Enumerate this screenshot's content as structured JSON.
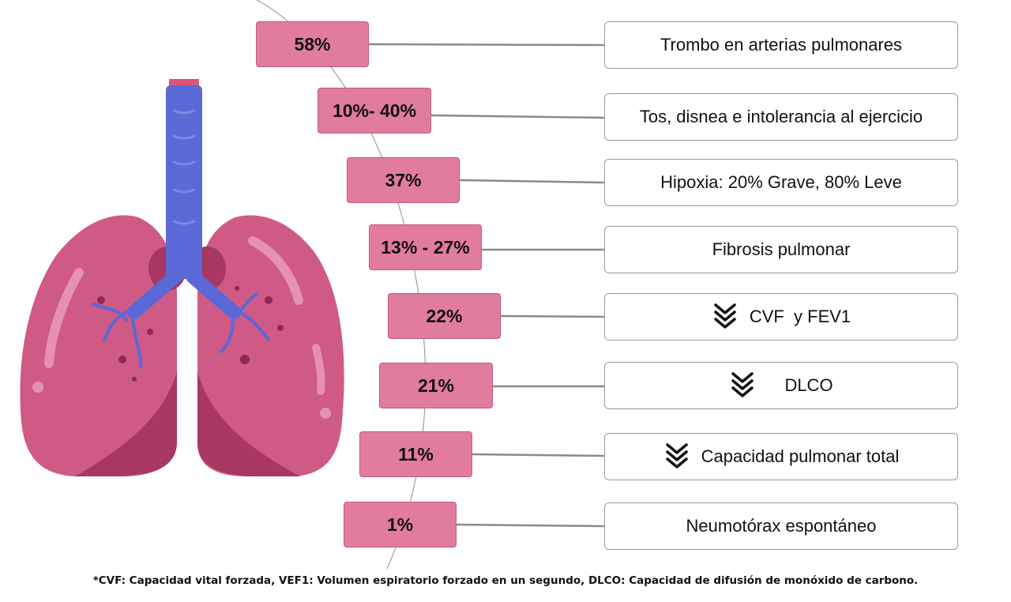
{
  "items": [
    {
      "pct": "58%",
      "label": "Trombo en arterias pulmonares",
      "icon": "none"
    },
    {
      "pct": "10%- 40%",
      "label": "Tos, disnea e intolerancia al ejercicio",
      "icon": "none"
    },
    {
      "pct": "37%",
      "label": "Hipoxia: 20% Grave, 80% Leve",
      "icon": "none"
    },
    {
      "pct": "13% - 27%",
      "label": "Fibrosis pulmonar",
      "icon": "none"
    },
    {
      "pct": "22%",
      "label": "CVF  y FEV1",
      "icon": "double-chevron-down-icon"
    },
    {
      "pct": "21%",
      "label": "DLCO",
      "icon": "double-chevron-down-icon"
    },
    {
      "pct": "11%",
      "label": "Capacidad pulmonar total",
      "icon": "double-chevron-down-icon"
    },
    {
      "pct": "1%",
      "label": "Neumotórax espontáneo",
      "icon": "none"
    }
  ],
  "footnote": "*CVF: Capacidad vital forzada, VEF1: Volumen espiratorio forzado en un segundo, DLCO: Capacidad de difusión de monóxido de carbono.",
  "colors": {
    "badge": "#e27c9f",
    "lung": "#cf5a85",
    "lung_dark": "#a83763",
    "trachea": "#5b68d6",
    "connector": "#8a8a8a"
  }
}
